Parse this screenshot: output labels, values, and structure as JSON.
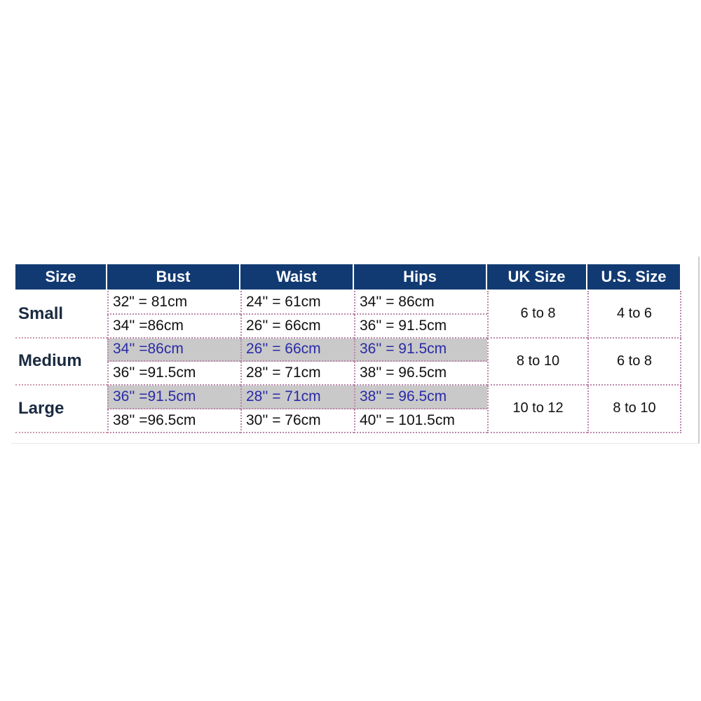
{
  "table": {
    "header": [
      "Size",
      "Bust",
      "Waist",
      "Hips",
      "UK Size",
      "U.S. Size"
    ],
    "rows": [
      {
        "size": "Small",
        "bust": [
          "32\" = 81cm",
          "34'' =86cm"
        ],
        "waist": [
          "24'' = 61cm",
          "26'' = 66cm"
        ],
        "hips": [
          "34'' = 86cm",
          "36'' = 91.5cm"
        ],
        "uk": "6 to 8",
        "us": "4 to 6"
      },
      {
        "size": "Medium",
        "bust": [
          "34'' =86cm",
          "36'' =91.5cm"
        ],
        "waist": [
          "26'' = 66cm",
          "28'' = 71cm"
        ],
        "hips": [
          "36'' = 91.5cm",
          "38'' = 96.5cm"
        ],
        "uk": "8 to 10",
        "us": "6 to 8"
      },
      {
        "size": "Large",
        "bust": [
          "36'' =91.5cm",
          "38'' =96.5cm"
        ],
        "waist": [
          "28'' = 71cm",
          "30'' = 76cm"
        ],
        "hips": [
          "38'' = 96.5cm",
          "40'' = 101.5cm"
        ],
        "uk": "10 to 12",
        "us": "8 to 10"
      }
    ]
  }
}
